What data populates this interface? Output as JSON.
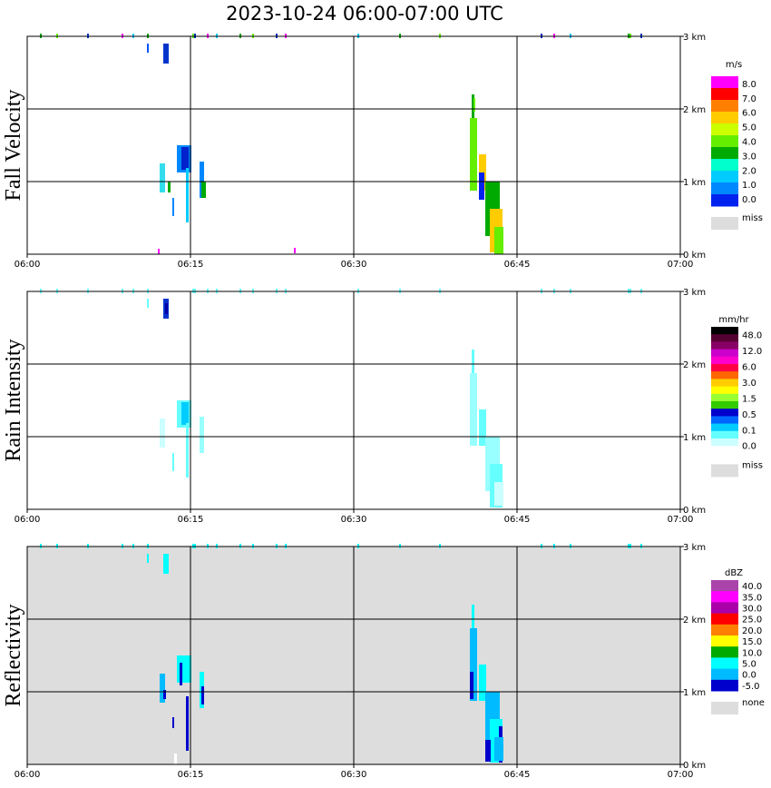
{
  "title": "2023-10-24   06:00-07:00 UTC",
  "chart_data": [
    {
      "type": "heatmap",
      "ylabel": "Fall Velocity",
      "xlim": [
        "06:00",
        "07:00"
      ],
      "x_ticks": [
        "06:00",
        "06:15",
        "06:30",
        "06:45",
        "07:00"
      ],
      "ylim_km": [
        0,
        3
      ],
      "y_ticks": [
        "0 km",
        "1 km",
        "2 km",
        "3 km"
      ],
      "grid": true,
      "colorbar": {
        "unit": "m/s",
        "labels": [
          "8.0",
          "7.0",
          "6.0",
          "5.0",
          "4.0",
          "3.0",
          "2.0",
          "1.0",
          "0.0"
        ],
        "colors": [
          "#ff00ff",
          "#ff0000",
          "#ff8000",
          "#ffcc00",
          "#ccff00",
          "#66ee00",
          "#00aa00",
          "#00ffcc",
          "#00ccff",
          "#0088ff",
          "#0022ee"
        ],
        "miss_label": "miss",
        "miss_color": "#dddddd"
      }
    },
    {
      "type": "heatmap",
      "ylabel": "Rain Intensity",
      "xlim": [
        "06:00",
        "07:00"
      ],
      "x_ticks": [
        "06:00",
        "06:15",
        "06:30",
        "06:45",
        "07:00"
      ],
      "ylim_km": [
        0,
        3
      ],
      "y_ticks": [
        "0 km",
        "1 km",
        "2 km",
        "3 km"
      ],
      "grid": true,
      "colorbar": {
        "unit": "mm/hr",
        "labels": [
          "48.0",
          "12.0",
          "6.0",
          "3.0",
          "1.5",
          "0.5",
          "0.1",
          "0.0"
        ],
        "colors": [
          "#000000",
          "#550033",
          "#880066",
          "#cc00cc",
          "#ff00cc",
          "#ff0044",
          "#ff6600",
          "#ffcc00",
          "#ffff00",
          "#99ff33",
          "#33cc00",
          "#0000cc",
          "#0066ff",
          "#00ccff",
          "#66ffff",
          "#ccffff",
          "#ffffff"
        ],
        "miss_label": "miss",
        "miss_color": "#dddddd"
      }
    },
    {
      "type": "heatmap",
      "ylabel": "Reflectivity",
      "xlim": [
        "06:00",
        "07:00"
      ],
      "x_ticks": [
        "06:00",
        "06:15",
        "06:30",
        "06:45",
        "07:00"
      ],
      "ylim_km": [
        0,
        3
      ],
      "y_ticks": [
        "0 km",
        "1 km",
        "2 km",
        "3 km"
      ],
      "grid": true,
      "colorbar": {
        "unit": "dBZ",
        "labels": [
          "40.0",
          "35.0",
          "30.0",
          "25.0",
          "20.0",
          "15.0",
          "10.0",
          "5.0",
          "0.0",
          "-5.0"
        ],
        "colors": [
          "#aa44aa",
          "#ff00ff",
          "#aa00aa",
          "#ff0000",
          "#ff8000",
          "#ffff00",
          "#00aa00",
          "#00ffff",
          "#00bbff",
          "#0000cc"
        ],
        "miss_label": "none",
        "miss_color": "#dddddd"
      }
    }
  ]
}
